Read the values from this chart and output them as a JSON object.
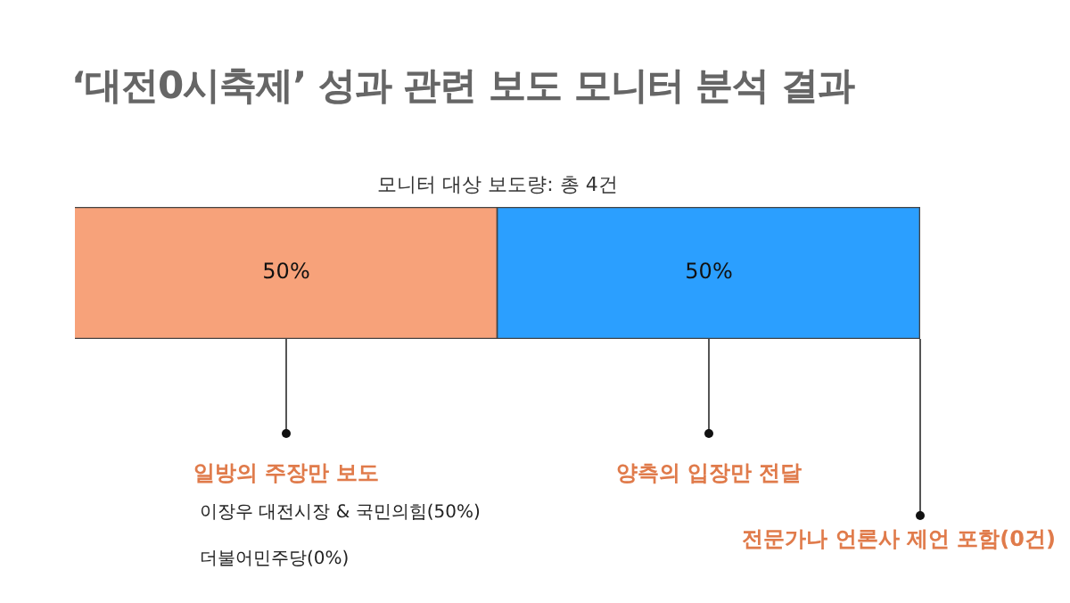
{
  "chart_data": {
    "type": "bar",
    "orientation": "horizontal",
    "stacked": true,
    "title": "‘대전0시축제’ 성과 관련 보도 모니터 분석 결과",
    "subtitle": "모니터 대상 보도량: 총 4건",
    "categories": [
      null
    ],
    "series": [
      {
        "name": "일방의 주장만 보도",
        "color": "#f7a27a",
        "values": [
          50
        ],
        "value_labels": [
          "50%"
        ]
      },
      {
        "name": "양측의 입장만 전달",
        "color": "#2b9fff",
        "values": [
          50
        ],
        "value_labels": [
          "50%"
        ]
      }
    ],
    "annotations": [
      "전문가나 언론사 제언 포함(0건)",
      "이장우 대전시장 & 국민의힘(50%)",
      "더불어민주당(0%)"
    ],
    "legend": false
  }
}
